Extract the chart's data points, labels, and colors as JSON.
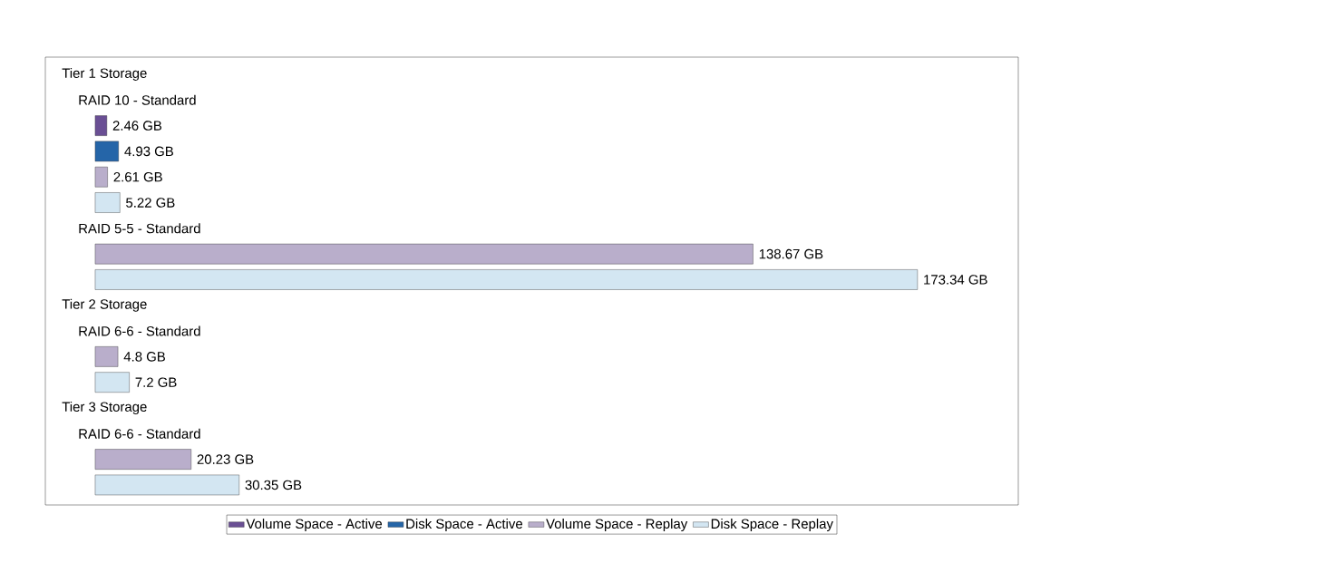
{
  "chart_data": {
    "type": "bar",
    "orientation": "horizontal",
    "legend": "bottom",
    "categories": [
      "Tier 1 Storage",
      "RAID 10 - Standard",
      null,
      null,
      null,
      null,
      "RAID 5-5 - Standard",
      null,
      null,
      "Tier 2 Storage",
      "RAID 6-6 - Standard",
      null,
      null,
      "Tier 3 Storage",
      "RAID 6-6 - Standard",
      null,
      null
    ],
    "series": [
      {
        "name": "Volume Space - Active",
        "color": "#6a4f94",
        "values": [
          null,
          null,
          2.46,
          null,
          null,
          null,
          null,
          null,
          null,
          null,
          null,
          null,
          null,
          null,
          null,
          null,
          null
        ],
        "value_labels": [
          null,
          null,
          "2.46 GB",
          null,
          null,
          null,
          null,
          null,
          null,
          null,
          null,
          null,
          null,
          null,
          null,
          null,
          null
        ]
      },
      {
        "name": "Disk Space - Active",
        "color": "#2565a8",
        "values": [
          null,
          null,
          null,
          4.93,
          null,
          null,
          null,
          null,
          null,
          null,
          null,
          null,
          null,
          null,
          null,
          null,
          null
        ],
        "value_labels": [
          null,
          null,
          null,
          "4.93 GB",
          null,
          null,
          null,
          null,
          null,
          null,
          null,
          null,
          null,
          null,
          null,
          null,
          null
        ]
      },
      {
        "name": "Volume Space - Replay",
        "color": "#b9aecb",
        "values": [
          null,
          null,
          null,
          null,
          2.61,
          null,
          null,
          138.67,
          null,
          null,
          null,
          4.8,
          null,
          null,
          null,
          20.23,
          null
        ],
        "value_labels": [
          null,
          null,
          null,
          null,
          "2.61 GB",
          null,
          null,
          "138.67 GB",
          null,
          null,
          null,
          "4.8 GB",
          null,
          null,
          null,
          "20.23 GB",
          null
        ]
      },
      {
        "name": "Disk Space - Replay",
        "color": "#d3e6f2",
        "values": [
          null,
          null,
          null,
          null,
          null,
          5.22,
          null,
          null,
          173.34,
          null,
          null,
          null,
          7.2,
          null,
          null,
          null,
          30.35
        ],
        "value_labels": [
          null,
          null,
          null,
          null,
          null,
          "5.22 GB",
          null,
          null,
          "173.34 GB",
          null,
          null,
          null,
          "7.2 GB",
          null,
          null,
          null,
          "30.35 GB"
        ]
      }
    ]
  }
}
